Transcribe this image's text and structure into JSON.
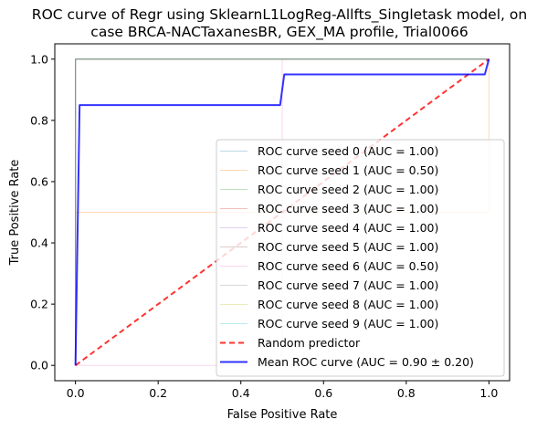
{
  "chart_data": {
    "type": "line",
    "title_line1": "ROC curve of Regr using SklearnL1LogReg-Allfts_Singletask model, on",
    "title_line2": "case BRCA-NACTaxanesBR, GEX_MA profile,  Trial0066",
    "xlabel": "False Positive Rate",
    "ylabel": "True Positive Rate",
    "xlim": [
      -0.05,
      1.05
    ],
    "ylim": [
      -0.05,
      1.05
    ],
    "xticks": [
      0.0,
      0.2,
      0.4,
      0.6,
      0.8,
      1.0
    ],
    "yticks": [
      0.0,
      0.2,
      0.4,
      0.6,
      0.8,
      1.0
    ],
    "xtick_labels": [
      "0.0",
      "0.2",
      "0.4",
      "0.6",
      "0.8",
      "1.0"
    ],
    "ytick_labels": [
      "0.0",
      "0.2",
      "0.4",
      "0.6",
      "0.8",
      "1.0"
    ],
    "grid": false,
    "legend_position": "lower-right",
    "series": [
      {
        "label": "ROC curve seed 0 (AUC = 1.00)",
        "color": "#1f77b4",
        "opacity": 0.3,
        "width": 1,
        "dash": "",
        "x": [
          0,
          0,
          1
        ],
        "y": [
          0,
          1,
          1
        ]
      },
      {
        "label": "ROC curve seed 1 (AUC = 0.50)",
        "color": "#ff7f0e",
        "opacity": 0.3,
        "width": 1,
        "dash": "",
        "x": [
          0,
          0,
          1,
          1
        ],
        "y": [
          0,
          0.5,
          0.5,
          1
        ]
      },
      {
        "label": "ROC curve seed 2 (AUC = 1.00)",
        "color": "#2ca02c",
        "opacity": 0.3,
        "width": 1,
        "dash": "",
        "x": [
          0,
          0,
          1
        ],
        "y": [
          0,
          1,
          1
        ]
      },
      {
        "label": "ROC curve seed 3 (AUC = 1.00)",
        "color": "#d62728",
        "opacity": 0.3,
        "width": 1,
        "dash": "",
        "x": [
          0,
          0,
          1
        ],
        "y": [
          0,
          1,
          1
        ]
      },
      {
        "label": "ROC curve seed 4 (AUC = 1.00)",
        "color": "#9467bd",
        "opacity": 0.3,
        "width": 1,
        "dash": "",
        "x": [
          0,
          0,
          1
        ],
        "y": [
          0,
          1,
          1
        ]
      },
      {
        "label": "ROC curve seed 5 (AUC = 1.00)",
        "color": "#8c564b",
        "opacity": 0.3,
        "width": 1,
        "dash": "",
        "x": [
          0,
          0,
          1
        ],
        "y": [
          0,
          1,
          1
        ]
      },
      {
        "label": "ROC curve seed 6 (AUC = 0.50)",
        "color": "#e377c2",
        "opacity": 0.3,
        "width": 1,
        "dash": "",
        "x": [
          0,
          0.5,
          0.5,
          1
        ],
        "y": [
          0,
          0,
          1,
          1
        ]
      },
      {
        "label": "ROC curve seed 7 (AUC = 1.00)",
        "color": "#7f7f7f",
        "opacity": 0.3,
        "width": 1,
        "dash": "",
        "x": [
          0,
          0,
          1
        ],
        "y": [
          0,
          1,
          1
        ]
      },
      {
        "label": "ROC curve seed 8 (AUC = 1.00)",
        "color": "#bcbd22",
        "opacity": 0.3,
        "width": 1,
        "dash": "",
        "x": [
          0,
          0,
          1
        ],
        "y": [
          0,
          1,
          1
        ]
      },
      {
        "label": "ROC curve seed 9 (AUC = 1.00)",
        "color": "#17becf",
        "opacity": 0.3,
        "width": 1,
        "dash": "",
        "x": [
          0,
          0,
          1
        ],
        "y": [
          0,
          1,
          1
        ]
      },
      {
        "label": "Random predictor",
        "color": "#ff0000",
        "opacity": 0.8,
        "width": 2,
        "dash": "6,4",
        "x": [
          0,
          1
        ],
        "y": [
          0,
          1
        ]
      },
      {
        "label": "Mean ROC curve (AUC = 0.90 ± 0.20)",
        "color": "#0000ff",
        "opacity": 0.8,
        "width": 2,
        "dash": "",
        "x": [
          0,
          0.01,
          0.495,
          0.505,
          0.99,
          1.0
        ],
        "y": [
          0,
          0.85,
          0.85,
          0.95,
          0.95,
          1.0
        ]
      }
    ]
  }
}
